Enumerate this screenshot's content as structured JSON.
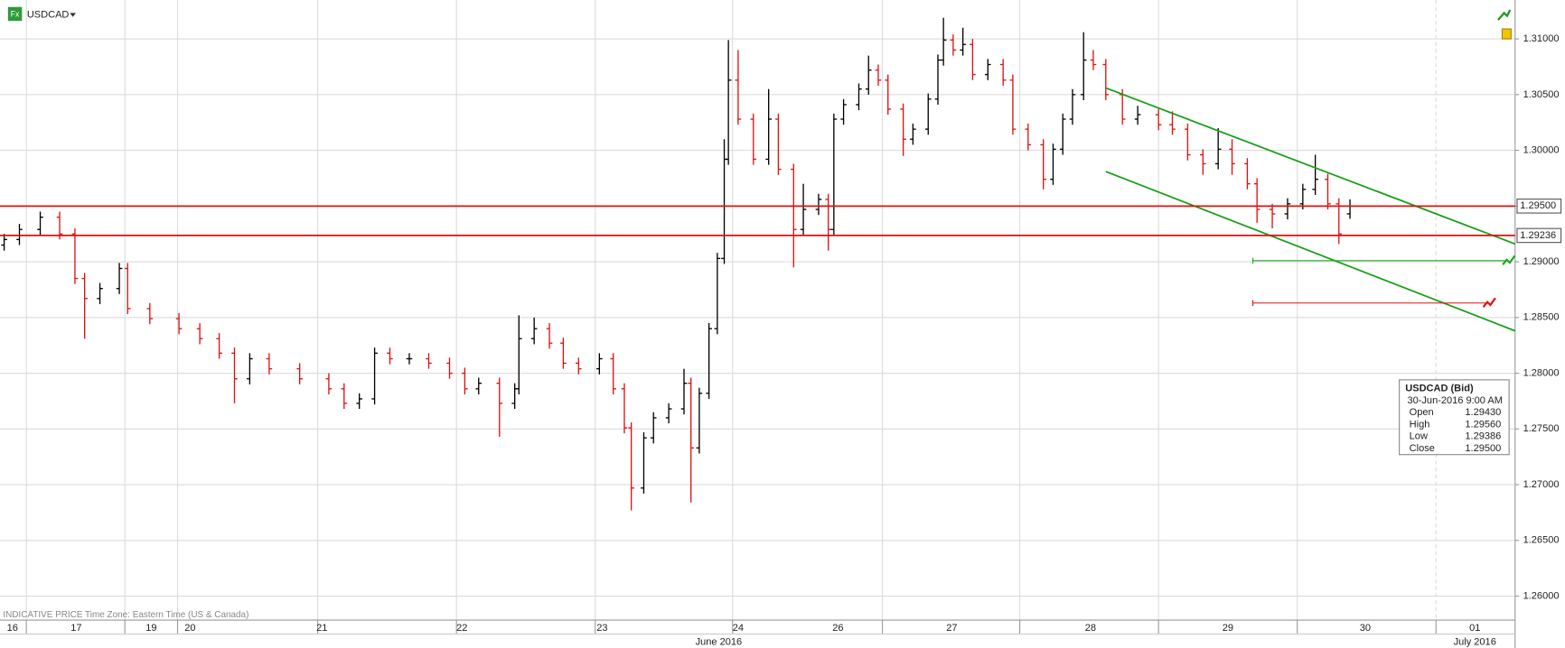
{
  "toolbar": {
    "symbol": "USDCAD",
    "icon": "Fx"
  },
  "footer_note": "INDICATIVE PRICE   Time Zone: Eastern Time (US & Canada)",
  "info_box": {
    "title": "USDCAD (Bid)",
    "time": "30-Jun-2016 9:00 AM",
    "rows": [
      [
        "Open",
        "1.29430"
      ],
      [
        "High",
        "1.29560"
      ],
      [
        "Low",
        "1.29386"
      ],
      [
        "Close",
        "1.29500"
      ]
    ]
  },
  "chart_data": {
    "type": "ohlc",
    "xlim": [
      0,
      10.92
    ],
    "ylim": [
      1.25785,
      1.31349
    ],
    "yticks": [
      {
        "value": 1.26,
        "label": "1.26000"
      },
      {
        "value": 1.265,
        "label": "1.26500"
      },
      {
        "value": 1.27,
        "label": "1.27000"
      },
      {
        "value": 1.275,
        "label": "1.27500"
      },
      {
        "value": 1.28,
        "label": "1.28000"
      },
      {
        "value": 1.285,
        "label": "1.28500"
      },
      {
        "value": 1.29,
        "label": "1.29000"
      },
      {
        "value": 1.295,
        "label": "1.29500"
      },
      {
        "value": 1.3,
        "label": "1.30000"
      },
      {
        "value": 1.305,
        "label": "1.30500"
      },
      {
        "value": 1.31,
        "label": "1.31000"
      }
    ],
    "xticks": [
      {
        "value": 0.09,
        "label": "16"
      },
      {
        "value": 0.55,
        "label": "17"
      },
      {
        "value": 1.09,
        "label": "19"
      },
      {
        "value": 1.37,
        "label": "20"
      },
      {
        "value": 2.32,
        "label": "21"
      },
      {
        "value": 3.33,
        "label": "22"
      },
      {
        "value": 4.34,
        "label": "23"
      },
      {
        "value": 5.32,
        "label": "24"
      },
      {
        "value": 6.04,
        "label": "26"
      },
      {
        "value": 6.86,
        "label": "27"
      },
      {
        "value": 7.86,
        "label": "28"
      },
      {
        "value": 8.85,
        "label": "29"
      },
      {
        "value": 9.84,
        "label": "30"
      },
      {
        "value": 10.63,
        "label": "01"
      }
    ],
    "xgrid": [
      0.19,
      0.9,
      1.28,
      2.29,
      3.29,
      4.29,
      5.28,
      6.36,
      7.35,
      8.35,
      9.35,
      10.35
    ],
    "months": [
      {
        "value": 5.18,
        "label": "June 2016"
      },
      {
        "value": 10.63,
        "label": "July 2016"
      }
    ],
    "grid": true,
    "up_color": "#000000",
    "down_color": "#e01010",
    "x": [
      0.03,
      0.14,
      0.29,
      0.43,
      0.54,
      0.61,
      0.72,
      0.86,
      0.92,
      1.08,
      1.29,
      1.44,
      1.58,
      1.69,
      1.8,
      1.94,
      2.16,
      2.37,
      2.48,
      2.59,
      2.7,
      2.81,
      2.95,
      3.09,
      3.24,
      3.35,
      3.45,
      3.6,
      3.71,
      3.74,
      3.85,
      3.96,
      4.06,
      4.17,
      4.32,
      4.42,
      4.5,
      4.55,
      4.64,
      4.71,
      4.82,
      4.93,
      4.98,
      5.04,
      5.11,
      5.17,
      5.22,
      5.25,
      5.32,
      5.43,
      5.54,
      5.61,
      5.72,
      5.79,
      5.9,
      5.97,
      6.01,
      6.08,
      6.19,
      6.26,
      6.33,
      6.4,
      6.51,
      6.58,
      6.69,
      6.76,
      6.8,
      6.87,
      6.94,
      7.01,
      7.12,
      7.23,
      7.3,
      7.41,
      7.52,
      7.59,
      7.66,
      7.73,
      7.81,
      7.88,
      7.97,
      8.09,
      8.2,
      8.35,
      8.45,
      8.56,
      8.67,
      8.78,
      8.88,
      8.99,
      9.06,
      9.17,
      9.28,
      9.39,
      9.48,
      9.57,
      9.65,
      9.73
    ],
    "open": [
      1.2915,
      1.292,
      1.2929,
      1.294,
      1.2925,
      1.2885,
      1.2867,
      1.2876,
      1.2894,
      1.2858,
      1.2849,
      1.284,
      1.2831,
      1.2818,
      1.2795,
      1.2813,
      1.2804,
      1.2795,
      1.2786,
      1.2773,
      1.2777,
      1.2818,
      1.2813,
      1.2813,
      1.2809,
      1.28,
      1.2786,
      1.2791,
      1.2773,
      1.2786,
      1.2831,
      1.284,
      1.2827,
      1.2809,
      1.2804,
      1.2813,
      1.2786,
      1.2751,
      1.2697,
      1.2742,
      1.276,
      1.2768,
      1.2791,
      1.2733,
      1.2782,
      1.284,
      1.2903,
      1.2992,
      1.3063,
      1.3028,
      1.2992,
      1.3028,
      1.2983,
      1.2929,
      1.2947,
      1.2956,
      1.2929,
      1.3028,
      1.3041,
      1.3055,
      1.3072,
      1.3063,
      1.3037,
      1.301,
      1.3019,
      1.3046,
      1.3081,
      1.3099,
      1.309,
      1.3095,
      1.3068,
      1.3077,
      1.3063,
      1.3019,
      1.3005,
      1.2974,
      1.3001,
      1.3028,
      1.305,
      1.3081,
      1.3077,
      1.305,
      1.3028,
      1.3032,
      1.3023,
      1.3019,
      1.2996,
      1.2988,
      1.3001,
      1.2988,
      1.297,
      1.2947,
      1.2943,
      1.2952,
      1.2965,
      1.2974,
      1.2952,
      1.2943
    ],
    "high": [
      1.2925,
      1.2934,
      1.2945,
      1.2945,
      1.293,
      1.289,
      1.2881,
      1.2899,
      1.2899,
      1.2863,
      1.2854,
      1.2845,
      1.2836,
      1.2823,
      1.2818,
      1.2818,
      1.2809,
      1.28,
      1.2791,
      1.2782,
      1.2823,
      1.2823,
      1.2818,
      1.2818,
      1.2814,
      1.2805,
      1.2796,
      1.2796,
      1.2791,
      1.2852,
      1.285,
      1.2845,
      1.2832,
      1.2814,
      1.2818,
      1.2818,
      1.2791,
      1.2756,
      1.2747,
      1.2765,
      1.2773,
      1.2804,
      1.2796,
      1.2787,
      1.2845,
      1.2908,
      1.301,
      1.3099,
      1.309,
      1.3033,
      1.3055,
      1.3033,
      1.2988,
      1.297,
      1.2961,
      1.2961,
      1.3033,
      1.3046,
      1.306,
      1.3085,
      1.3077,
      1.3068,
      1.3042,
      1.3024,
      1.3051,
      1.3086,
      1.3119,
      1.3104,
      1.311,
      1.31,
      1.3082,
      1.3082,
      1.3068,
      1.3024,
      1.301,
      1.3006,
      1.3033,
      1.3055,
      1.3106,
      1.309,
      1.3082,
      1.3055,
      1.304,
      1.3037,
      1.3035,
      1.3024,
      1.3001,
      1.302,
      1.301,
      1.2993,
      1.2975,
      1.2952,
      1.2957,
      1.297,
      1.2996,
      1.2979,
      1.2957,
      1.2956
    ],
    "low": [
      1.291,
      1.2915,
      1.2924,
      1.292,
      1.288,
      1.2831,
      1.2862,
      1.2871,
      1.2853,
      1.2844,
      1.2835,
      1.2826,
      1.2813,
      1.2773,
      1.279,
      1.2799,
      1.279,
      1.2781,
      1.2768,
      1.2768,
      1.2772,
      1.2808,
      1.2808,
      1.2804,
      1.2795,
      1.2781,
      1.2781,
      1.2743,
      1.2768,
      1.2781,
      1.2826,
      1.2822,
      1.2804,
      1.2799,
      1.2799,
      1.2781,
      1.2746,
      1.2677,
      1.2692,
      1.2737,
      1.2755,
      1.2763,
      1.2684,
      1.2728,
      1.2777,
      1.2835,
      1.2898,
      1.2987,
      1.3023,
      1.2987,
      1.2987,
      1.2978,
      1.2895,
      1.2924,
      1.2942,
      1.291,
      1.2924,
      1.3023,
      1.3036,
      1.305,
      1.3058,
      1.3032,
      1.2995,
      1.3005,
      1.3014,
      1.3041,
      1.3076,
      1.3085,
      1.3085,
      1.3063,
      1.3063,
      1.3058,
      1.3014,
      1.3,
      1.2965,
      1.2969,
      1.2996,
      1.3023,
      1.3045,
      1.3072,
      1.3045,
      1.3023,
      1.3023,
      1.3018,
      1.3014,
      1.2991,
      1.2978,
      1.2983,
      1.2978,
      1.2965,
      1.2935,
      1.293,
      1.2938,
      1.2947,
      1.296,
      1.2947,
      1.2916,
      1.29386
    ],
    "close": [
      1.292,
      1.2929,
      1.294,
      1.2925,
      1.2885,
      1.2867,
      1.2876,
      1.2894,
      1.2858,
      1.2849,
      1.284,
      1.2831,
      1.2818,
      1.2795,
      1.2813,
      1.2804,
      1.2795,
      1.2786,
      1.2773,
      1.2777,
      1.2818,
      1.2813,
      1.2813,
      1.2809,
      1.28,
      1.2786,
      1.2791,
      1.2773,
      1.2786,
      1.2831,
      1.284,
      1.2827,
      1.2809,
      1.2804,
      1.2813,
      1.2786,
      1.2751,
      1.2697,
      1.2742,
      1.276,
      1.2768,
      1.2791,
      1.2733,
      1.2782,
      1.284,
      1.2903,
      1.2992,
      1.3063,
      1.3028,
      1.2992,
      1.3028,
      1.2983,
      1.2929,
      1.2947,
      1.2956,
      1.2929,
      1.3028,
      1.3041,
      1.3055,
      1.3072,
      1.3063,
      1.3037,
      1.301,
      1.3019,
      1.3046,
      1.3081,
      1.3099,
      1.309,
      1.3095,
      1.3068,
      1.3077,
      1.3063,
      1.3019,
      1.3005,
      1.2974,
      1.3001,
      1.3028,
      1.305,
      1.3081,
      1.3077,
      1.305,
      1.3028,
      1.3032,
      1.3023,
      1.3019,
      1.2996,
      1.2988,
      1.3001,
      1.2988,
      1.297,
      1.2947,
      1.2943,
      1.2952,
      1.2965,
      1.2974,
      1.2952,
      1.2925,
      1.295
    ],
    "levels": [
      {
        "value": 1.295,
        "label": "1.29500",
        "color": "#e01010"
      },
      {
        "value": 1.29236,
        "label": "1.29236",
        "color": "#e01010"
      }
    ],
    "alert_lines": [
      {
        "x": [
          9.03,
          10.86
        ],
        "value": 1.2901,
        "color": "#22aa22"
      },
      {
        "x": [
          9.03,
          10.72
        ],
        "value": 1.2863,
        "color": "#e01010"
      }
    ],
    "trendlines": [
      {
        "x": [
          7.97,
          10.92
        ],
        "y": [
          1.3056,
          1.2916
        ],
        "color": "#16a016"
      },
      {
        "x": [
          7.97,
          10.92
        ],
        "y": [
          1.2981,
          1.2838
        ],
        "color": "#16a016"
      }
    ]
  }
}
